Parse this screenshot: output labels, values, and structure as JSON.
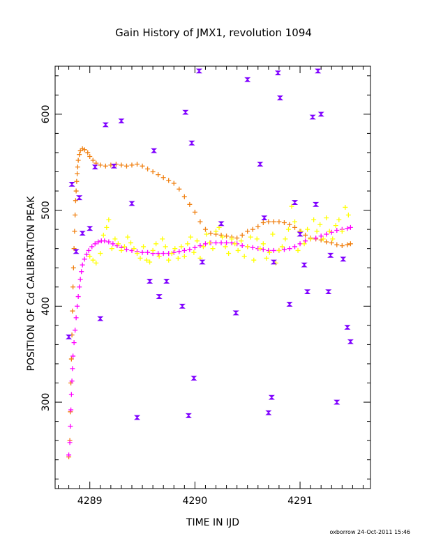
{
  "chart_data": {
    "type": "scatter",
    "title": "Gain History of JMX1, revolution 1094",
    "xlabel": "TIME IN IJD",
    "ylabel": "POSITION OF Cd CALIBRATION PEAK",
    "xlim": [
      4288.67,
      4291.67
    ],
    "ylim": [
      210,
      650
    ],
    "x_ticks": [
      "4289",
      "4290",
      "4291"
    ],
    "y_ticks": [
      "300",
      "400",
      "500",
      "600"
    ],
    "x_tick_values": [
      4289,
      4290,
      4291
    ],
    "y_tick_values": [
      300,
      400,
      500,
      600
    ],
    "grid": false,
    "legend": "none",
    "footer": "oxborrow 24-Oct-2011 15:46",
    "colors": {
      "orange": "#f07f0f",
      "magenta": "#ff00ff",
      "yellow": "#ffff00",
      "purple": "#7f00ff"
    },
    "series": [
      {
        "marker": "plus",
        "color": "#f07f0f",
        "points": [
          [
            4288.8,
            243
          ],
          [
            4288.81,
            260
          ],
          [
            4288.815,
            290
          ],
          [
            4288.82,
            320
          ],
          [
            4288.825,
            345
          ],
          [
            4288.83,
            370
          ],
          [
            4288.835,
            395
          ],
          [
            4288.84,
            420
          ],
          [
            4288.845,
            440
          ],
          [
            4288.85,
            460
          ],
          [
            4288.855,
            478
          ],
          [
            4288.86,
            495
          ],
          [
            4288.865,
            510
          ],
          [
            4288.87,
            520
          ],
          [
            4288.875,
            530
          ],
          [
            4288.88,
            538
          ],
          [
            4288.885,
            545
          ],
          [
            4288.89,
            552
          ],
          [
            4288.9,
            558
          ],
          [
            4288.91,
            562
          ],
          [
            4288.93,
            564
          ],
          [
            4288.95,
            563
          ],
          [
            4288.98,
            560
          ],
          [
            4289.0,
            556
          ],
          [
            4289.03,
            552
          ],
          [
            4289.06,
            549
          ],
          [
            4289.1,
            547
          ],
          [
            4289.15,
            546
          ],
          [
            4289.2,
            547
          ],
          [
            4289.25,
            548
          ],
          [
            4289.3,
            547
          ],
          [
            4289.35,
            546
          ],
          [
            4289.4,
            547
          ],
          [
            4289.45,
            548
          ],
          [
            4289.5,
            546
          ],
          [
            4289.55,
            543
          ],
          [
            4289.6,
            540
          ],
          [
            4289.65,
            537
          ],
          [
            4289.7,
            534
          ],
          [
            4289.75,
            531
          ],
          [
            4289.8,
            528
          ],
          [
            4289.85,
            522
          ],
          [
            4289.9,
            514
          ],
          [
            4289.95,
            506
          ],
          [
            4290.0,
            498
          ],
          [
            4290.05,
            488
          ],
          [
            4290.1,
            480
          ],
          [
            4290.15,
            476
          ],
          [
            4290.2,
            475
          ],
          [
            4290.25,
            474
          ],
          [
            4290.3,
            473
          ],
          [
            4290.35,
            472
          ],
          [
            4290.4,
            471
          ],
          [
            4290.45,
            474
          ],
          [
            4290.5,
            478
          ],
          [
            4290.55,
            480
          ],
          [
            4290.6,
            483
          ],
          [
            4290.65,
            487
          ],
          [
            4290.7,
            488
          ],
          [
            4290.75,
            488
          ],
          [
            4290.8,
            488
          ],
          [
            4290.85,
            487
          ],
          [
            4290.9,
            485
          ],
          [
            4290.95,
            482
          ],
          [
            4291.0,
            478
          ],
          [
            4291.05,
            474
          ],
          [
            4291.1,
            471
          ],
          [
            4291.15,
            470
          ],
          [
            4291.2,
            469
          ],
          [
            4291.25,
            467
          ],
          [
            4291.3,
            466
          ],
          [
            4291.35,
            464
          ],
          [
            4291.4,
            463
          ],
          [
            4291.45,
            464
          ],
          [
            4291.48,
            465
          ]
        ]
      },
      {
        "marker": "plus",
        "color": "#ff00ff",
        "points": [
          [
            4288.8,
            245
          ],
          [
            4288.81,
            258
          ],
          [
            4288.815,
            275
          ],
          [
            4288.82,
            292
          ],
          [
            4288.825,
            308
          ],
          [
            4288.83,
            322
          ],
          [
            4288.835,
            335
          ],
          [
            4288.84,
            348
          ],
          [
            4288.85,
            362
          ],
          [
            4288.86,
            375
          ],
          [
            4288.87,
            388
          ],
          [
            4288.88,
            400
          ],
          [
            4288.89,
            410
          ],
          [
            4288.9,
            420
          ],
          [
            4288.91,
            428
          ],
          [
            4288.92,
            436
          ],
          [
            4288.93,
            443
          ],
          [
            4288.95,
            449
          ],
          [
            4288.97,
            454
          ],
          [
            4288.99,
            458
          ],
          [
            4289.02,
            462
          ],
          [
            4289.05,
            465
          ],
          [
            4289.08,
            467
          ],
          [
            4289.11,
            468
          ],
          [
            4289.14,
            468
          ],
          [
            4289.18,
            467
          ],
          [
            4289.22,
            465
          ],
          [
            4289.26,
            463
          ],
          [
            4289.3,
            461
          ],
          [
            4289.35,
            459
          ],
          [
            4289.4,
            458
          ],
          [
            4289.45,
            457
          ],
          [
            4289.5,
            456
          ],
          [
            4289.55,
            456
          ],
          [
            4289.6,
            455
          ],
          [
            4289.65,
            455
          ],
          [
            4289.7,
            455
          ],
          [
            4289.75,
            455
          ],
          [
            4289.8,
            456
          ],
          [
            4289.85,
            457
          ],
          [
            4289.9,
            458
          ],
          [
            4289.95,
            459
          ],
          [
            4290.0,
            461
          ],
          [
            4290.05,
            463
          ],
          [
            4290.1,
            465
          ],
          [
            4290.15,
            466
          ],
          [
            4290.2,
            466
          ],
          [
            4290.25,
            466
          ],
          [
            4290.3,
            466
          ],
          [
            4290.35,
            466
          ],
          [
            4290.4,
            465
          ],
          [
            4290.45,
            463
          ],
          [
            4290.5,
            462
          ],
          [
            4290.55,
            461
          ],
          [
            4290.6,
            460
          ],
          [
            4290.65,
            459
          ],
          [
            4290.7,
            458
          ],
          [
            4290.75,
            458
          ],
          [
            4290.8,
            458
          ],
          [
            4290.85,
            459
          ],
          [
            4290.9,
            460
          ],
          [
            4290.95,
            462
          ],
          [
            4291.0,
            465
          ],
          [
            4291.05,
            468
          ],
          [
            4291.1,
            470
          ],
          [
            4291.15,
            471
          ],
          [
            4291.2,
            473
          ],
          [
            4291.25,
            475
          ],
          [
            4291.3,
            477
          ],
          [
            4291.35,
            479
          ],
          [
            4291.4,
            480
          ],
          [
            4291.45,
            481
          ],
          [
            4291.48,
            482
          ]
        ]
      },
      {
        "marker": "plus",
        "color": "#ffff00",
        "points": [
          [
            4289.0,
            452
          ],
          [
            4289.03,
            448
          ],
          [
            4289.06,
            445
          ],
          [
            4289.1,
            455
          ],
          [
            4289.13,
            474
          ],
          [
            4289.16,
            482
          ],
          [
            4289.18,
            490
          ],
          [
            4289.21,
            460
          ],
          [
            4289.24,
            470
          ],
          [
            4289.27,
            465
          ],
          [
            4289.3,
            458
          ],
          [
            4289.33,
            462
          ],
          [
            4289.36,
            472
          ],
          [
            4289.39,
            466
          ],
          [
            4289.42,
            460
          ],
          [
            4289.45,
            455
          ],
          [
            4289.48,
            450
          ],
          [
            4289.51,
            462
          ],
          [
            4289.54,
            448
          ],
          [
            4289.57,
            446
          ],
          [
            4289.6,
            458
          ],
          [
            4289.63,
            465
          ],
          [
            4289.66,
            452
          ],
          [
            4289.69,
            470
          ],
          [
            4289.72,
            462
          ],
          [
            4289.75,
            448
          ],
          [
            4289.78,
            455
          ],
          [
            4289.81,
            460
          ],
          [
            4289.84,
            450
          ],
          [
            4289.87,
            462
          ],
          [
            4289.9,
            452
          ],
          [
            4289.93,
            465
          ],
          [
            4289.96,
            472
          ],
          [
            4289.99,
            456
          ],
          [
            4290.02,
            468
          ],
          [
            4290.05,
            450
          ],
          [
            4290.08,
            462
          ],
          [
            4290.11,
            475
          ],
          [
            4290.14,
            466
          ],
          [
            4290.17,
            460
          ],
          [
            4290.2,
            478
          ],
          [
            4290.23,
            482
          ],
          [
            4290.26,
            472
          ],
          [
            4290.29,
            462
          ],
          [
            4290.32,
            455
          ],
          [
            4290.35,
            470
          ],
          [
            4290.38,
            465
          ],
          [
            4290.41,
            458
          ],
          [
            4290.44,
            468
          ],
          [
            4290.47,
            452
          ],
          [
            4290.5,
            462
          ],
          [
            4290.53,
            472
          ],
          [
            4290.56,
            448
          ],
          [
            4290.59,
            470
          ],
          [
            4290.62,
            460
          ],
          [
            4290.65,
            465
          ],
          [
            4290.68,
            450
          ],
          [
            4290.71,
            456
          ],
          [
            4290.74,
            475
          ],
          [
            4290.77,
            445
          ],
          [
            4290.8,
            458
          ],
          [
            4290.83,
            462
          ],
          [
            4290.86,
            470
          ],
          [
            4290.89,
            480
          ],
          [
            4290.92,
            504
          ],
          [
            4290.95,
            488
          ],
          [
            4290.98,
            458
          ],
          [
            4291.01,
            478
          ],
          [
            4291.04,
            465
          ],
          [
            4291.07,
            480
          ],
          [
            4291.1,
            470
          ],
          [
            4291.13,
            490
          ],
          [
            4291.16,
            478
          ],
          [
            4291.19,
            485
          ],
          [
            4291.22,
            470
          ],
          [
            4291.25,
            492
          ],
          [
            4291.28,
            478
          ],
          [
            4291.31,
            470
          ],
          [
            4291.34,
            484
          ],
          [
            4291.37,
            490
          ],
          [
            4291.4,
            478
          ],
          [
            4291.43,
            503
          ],
          [
            4291.46,
            495
          ]
        ]
      },
      {
        "marker": "hourglass",
        "color": "#7f00ff",
        "points": [
          [
            4288.8,
            368
          ],
          [
            4288.83,
            527
          ],
          [
            4288.87,
            457
          ],
          [
            4288.9,
            513
          ],
          [
            4288.93,
            476
          ],
          [
            4289.0,
            481
          ],
          [
            4289.05,
            545
          ],
          [
            4289.1,
            387
          ],
          [
            4289.15,
            589
          ],
          [
            4289.23,
            546
          ],
          [
            4289.3,
            593
          ],
          [
            4289.4,
            507
          ],
          [
            4289.45,
            284
          ],
          [
            4289.57,
            426
          ],
          [
            4289.61,
            562
          ],
          [
            4289.66,
            410
          ],
          [
            4289.73,
            426
          ],
          [
            4289.88,
            400
          ],
          [
            4289.91,
            602
          ],
          [
            4289.94,
            286
          ],
          [
            4289.97,
            570
          ],
          [
            4289.99,
            325
          ],
          [
            4290.04,
            645
          ],
          [
            4290.07,
            446
          ],
          [
            4290.25,
            486
          ],
          [
            4290.39,
            393
          ],
          [
            4290.5,
            636
          ],
          [
            4290.62,
            548
          ],
          [
            4290.66,
            492
          ],
          [
            4290.7,
            289
          ],
          [
            4290.73,
            305
          ],
          [
            4290.75,
            446
          ],
          [
            4290.79,
            643
          ],
          [
            4290.81,
            617
          ],
          [
            4290.9,
            402
          ],
          [
            4290.95,
            508
          ],
          [
            4291.0,
            475
          ],
          [
            4291.04,
            443
          ],
          [
            4291.07,
            415
          ],
          [
            4291.12,
            597
          ],
          [
            4291.15,
            506
          ],
          [
            4291.17,
            645
          ],
          [
            4291.2,
            600
          ],
          [
            4291.27,
            415
          ],
          [
            4291.29,
            453
          ],
          [
            4291.35,
            300
          ],
          [
            4291.41,
            449
          ],
          [
            4291.45,
            378
          ],
          [
            4291.48,
            363
          ]
        ]
      }
    ]
  }
}
